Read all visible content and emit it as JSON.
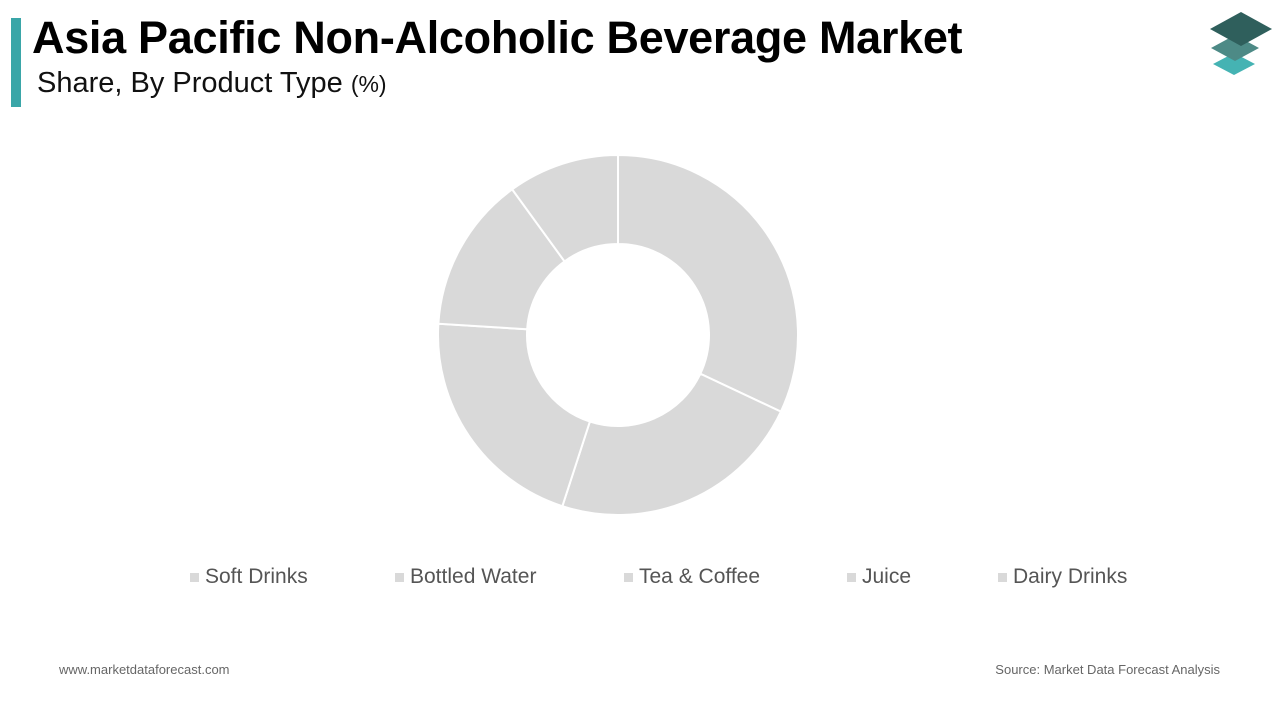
{
  "header": {
    "title": "Asia Pacific Non-Alcoholic Beverage Market",
    "subtitle": "Share, By Product Type",
    "unit": "(%)"
  },
  "colors": {
    "accent": "#3aa6a8",
    "slice_fill": "#d9d9d9",
    "slice_stroke": "#ffffff",
    "logo_dark": "#2f5f5c",
    "logo_mid": "#4d8a86",
    "logo_light": "#45b3b3"
  },
  "logo": {
    "icon": "stacked-layers-icon"
  },
  "chart_data": {
    "type": "pie",
    "variant": "donut",
    "categories": [
      "Soft Drinks",
      "Bottled Water",
      "Tea & Coffee",
      "Juice",
      "Dairy Drinks"
    ],
    "values": [
      32,
      23,
      21,
      14,
      10
    ],
    "legend_position": "bottom"
  },
  "footer": {
    "website": "www.marketdataforecast.com",
    "source": "Source: Market Data Forecast Analysis"
  }
}
